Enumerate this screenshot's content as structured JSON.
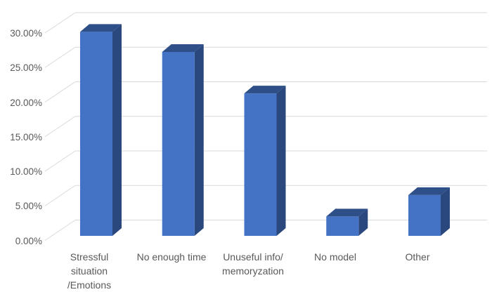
{
  "chart_data": {
    "type": "bar",
    "style": "3d-clustered-column",
    "title": "",
    "categories": [
      "Stressful situation /Emotions",
      "No enough time",
      "Unuseful info/ memoryzation",
      "No model",
      "Other"
    ],
    "category_label_lines": [
      [
        "Stressful",
        "situation",
        "/Emotions"
      ],
      [
        "No enough time"
      ],
      [
        "Unuseful info/",
        "memoryzation"
      ],
      [
        "No model"
      ],
      [
        "Other"
      ]
    ],
    "values": [
      29.5,
      26.6,
      20.6,
      2.8,
      5.9
    ],
    "value_unit": "percent",
    "ylim": [
      0,
      30
    ],
    "ytick_values": [
      30,
      25,
      20,
      15,
      10,
      5,
      0
    ],
    "ytick_labels_top_to_bottom": [
      "30.00%",
      "25.00%",
      "20.00%",
      "15.00%",
      "10.00%",
      "5.00%",
      "0.00%"
    ],
    "xlabel": "",
    "ylabel": "",
    "grid": true,
    "legend": "none",
    "colors": {
      "bar_front": "#4472C4",
      "bar_top": "#2E4F88",
      "bar_side": "#2A477E",
      "gridline": "#D9D9D9",
      "tick_label": "#595959",
      "background": "#FFFFFF"
    }
  }
}
